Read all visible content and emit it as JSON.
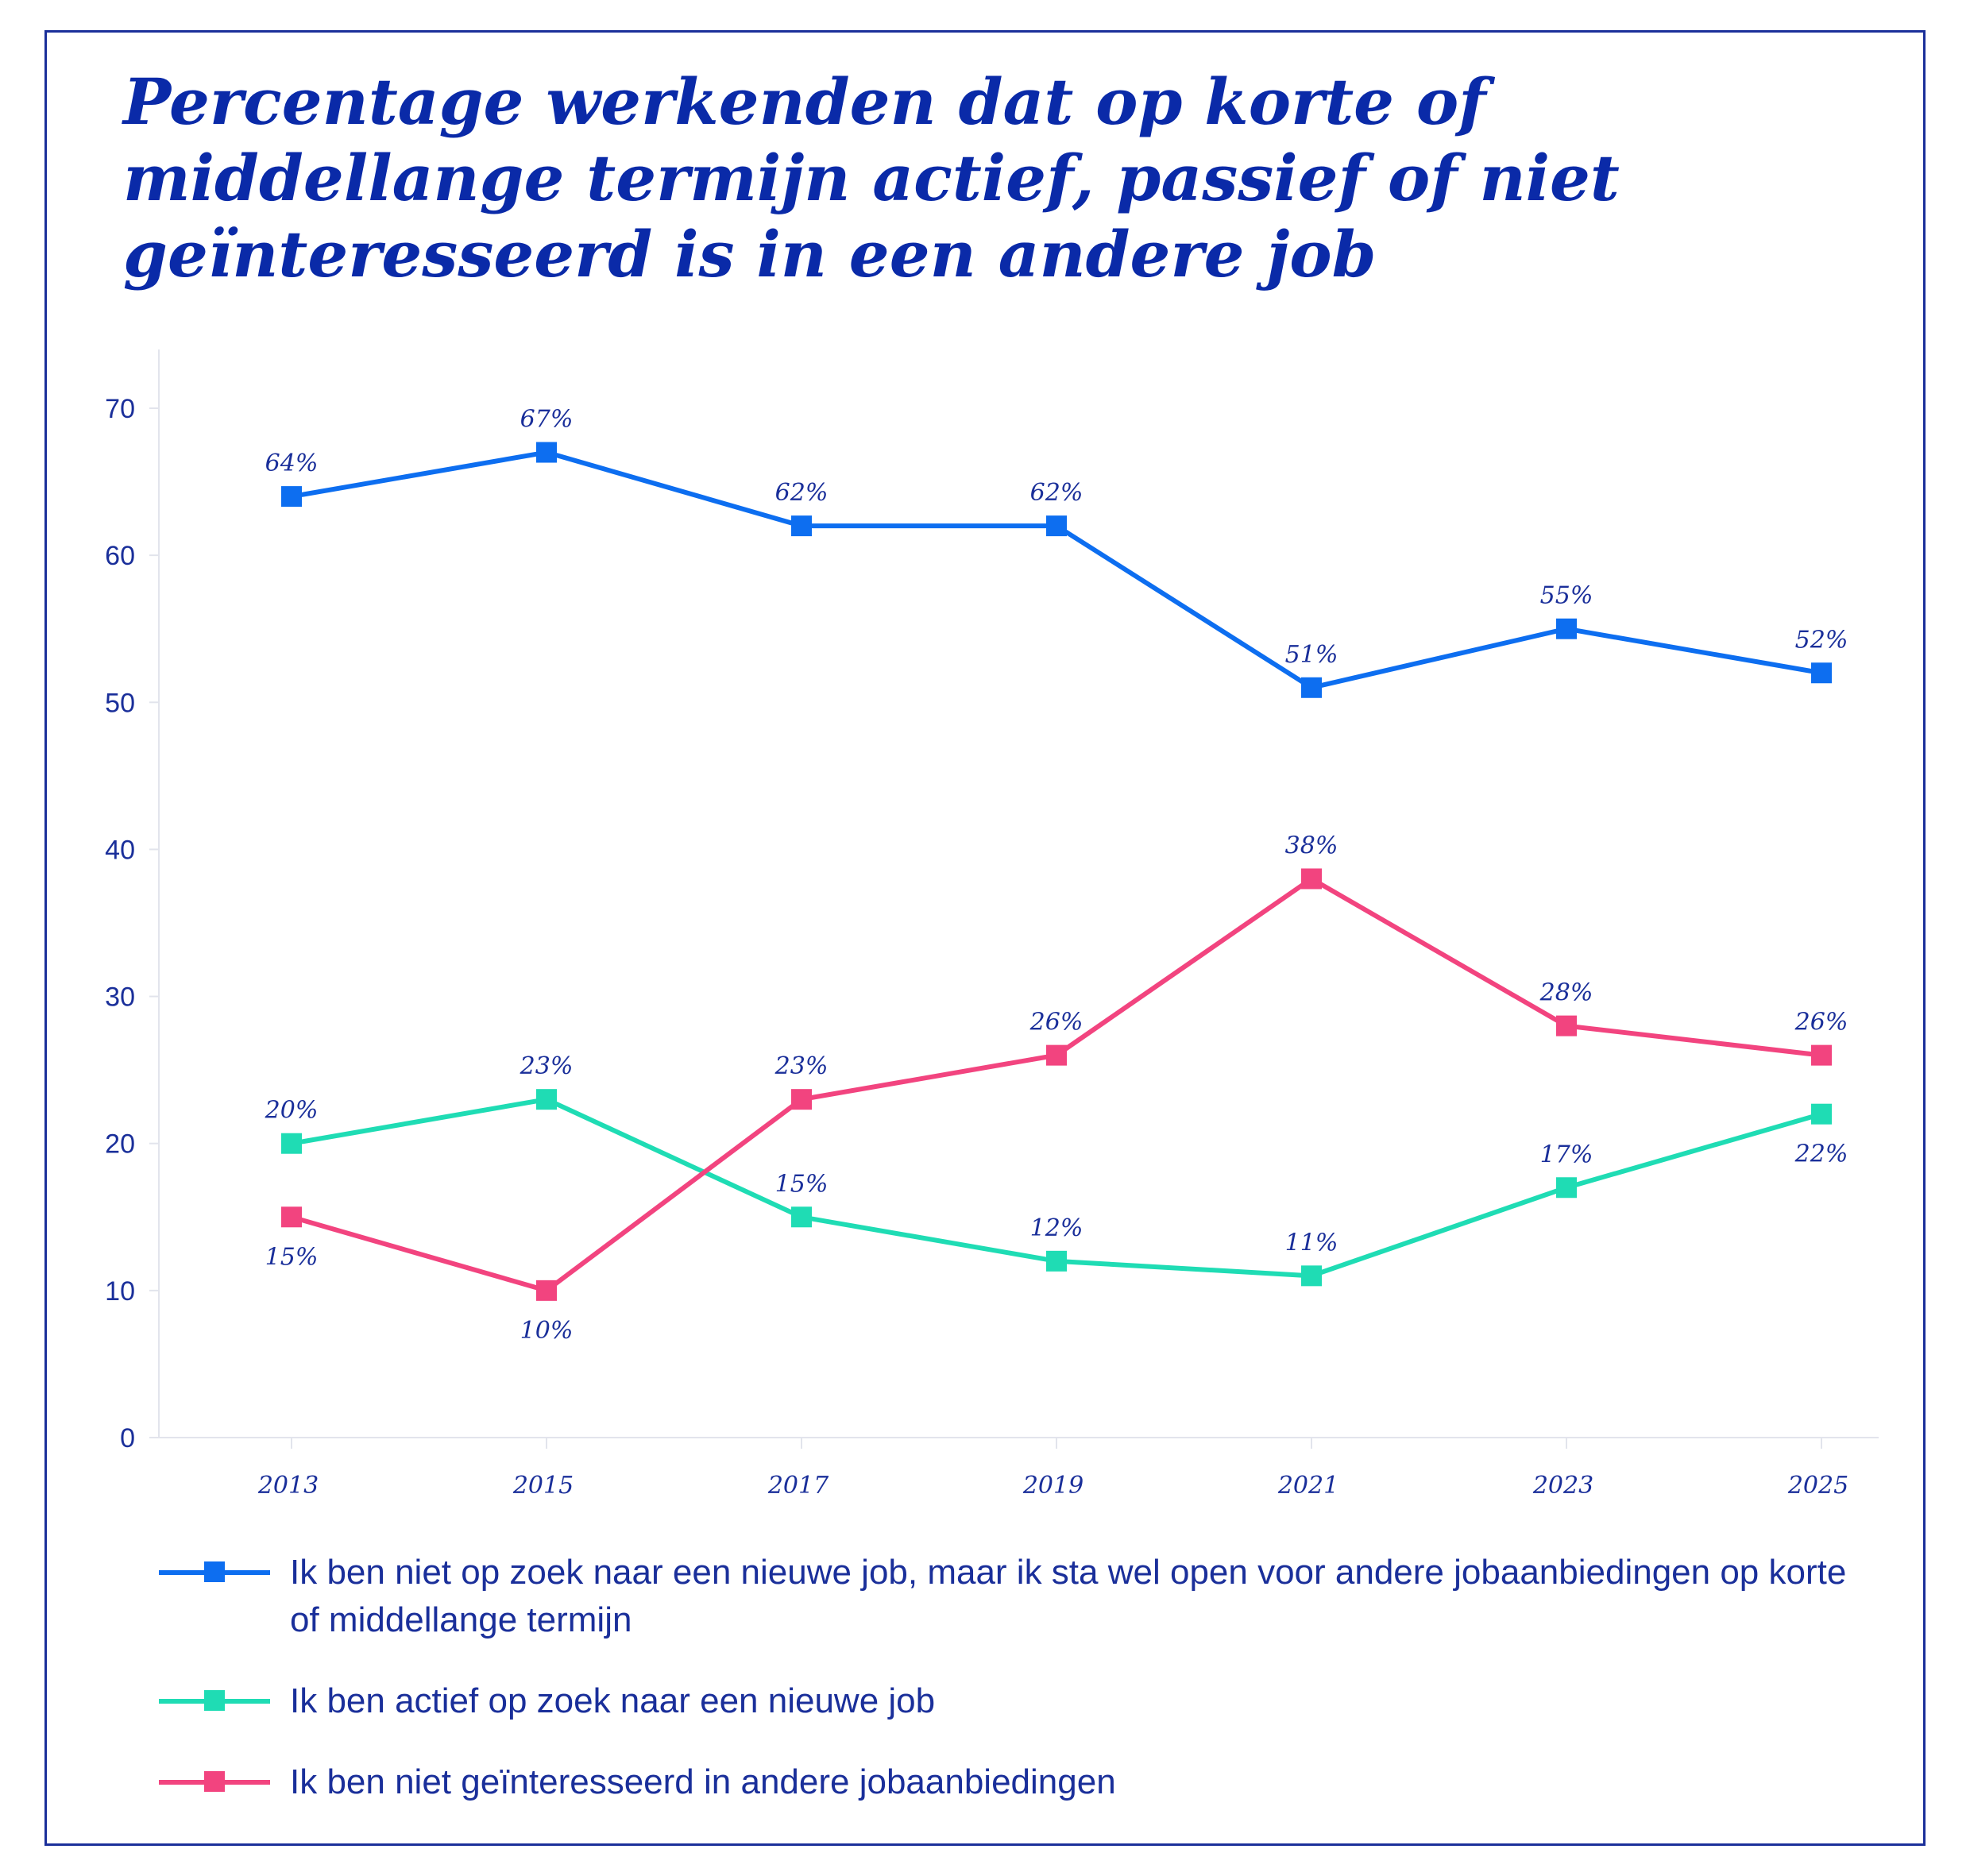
{
  "chart_data": {
    "type": "line",
    "title": "Percentage werkenden dat op korte of middellange termijn actief, passief of niet geïnteresseerd is in een andere job",
    "categories": [
      "2013",
      "2015",
      "2017",
      "2019",
      "2021",
      "2023",
      "2025"
    ],
    "ylim": [
      0,
      70
    ],
    "yticks": [
      "0",
      "10",
      "20",
      "30",
      "40",
      "50",
      "60",
      "70"
    ],
    "grid": false,
    "legend_position": "bottom",
    "series": [
      {
        "name": "Ik ben niet op zoek naar een nieuwe job, maar ik sta wel open voor andere jobaanbiedingen op korte of middellange termijn",
        "color": "#0d6ef0",
        "values": [
          64,
          67,
          62,
          62,
          51,
          55,
          52
        ],
        "labels": [
          "64%",
          "67%",
          "62%",
          "62%",
          "51%",
          "55%",
          "52%"
        ]
      },
      {
        "name": "Ik ben actief op zoek naar een nieuwe job",
        "color": "#1fdcb4",
        "values": [
          20,
          23,
          15,
          12,
          11,
          17,
          22
        ],
        "labels": [
          "20%",
          "23%",
          "15%",
          "12%",
          "11%",
          "17%",
          "22%"
        ]
      },
      {
        "name": "Ik ben niet geïnteresseerd in andere jobaanbiedingen",
        "color": "#f2447f",
        "values": [
          15,
          10,
          23,
          26,
          38,
          28,
          26
        ],
        "labels": [
          "15%",
          "10%",
          "23%",
          "26%",
          "38%",
          "28%",
          "26%"
        ]
      }
    ]
  }
}
